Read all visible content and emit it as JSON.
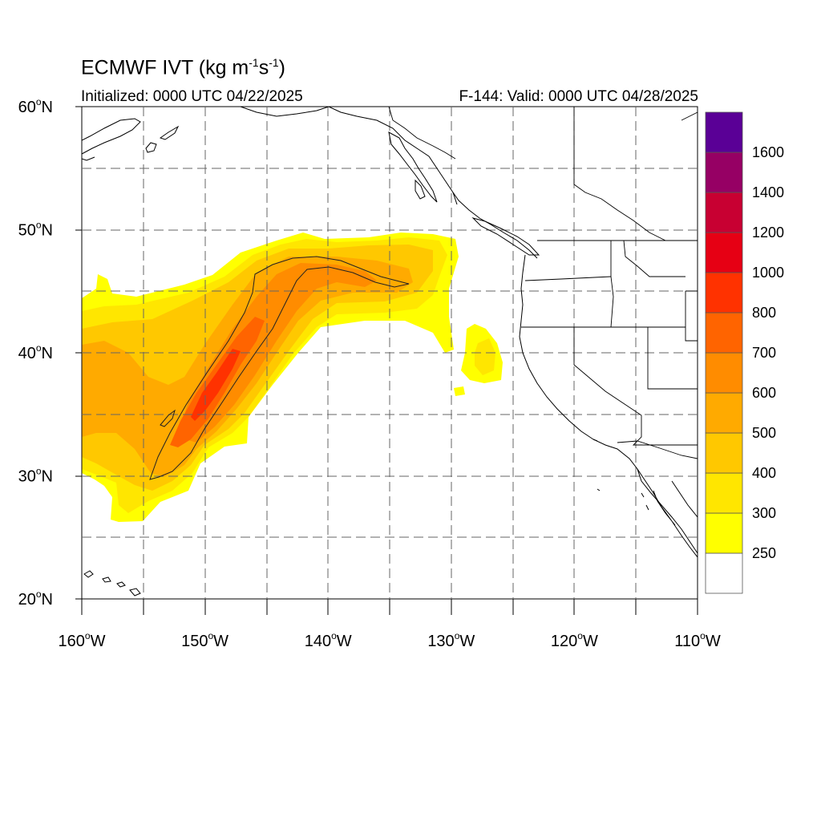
{
  "title_main": "ECMWF IVT (kg m",
  "title_sup1": "-1",
  "title_mid": "s",
  "title_sup2": "-1",
  "title_end": ")",
  "init_text": "Initialized: 0000 UTC 04/22/2025",
  "valid_text": "F-144: Valid: 0000 UTC 04/28/2025",
  "lat_labels": [
    {
      "deg": "60",
      "lat": 60
    },
    {
      "deg": "50",
      "lat": 50
    },
    {
      "deg": "40",
      "lat": 40
    },
    {
      "deg": "30",
      "lat": 30
    },
    {
      "deg": "20",
      "lat": 20
    }
  ],
  "lat_suffix": "N",
  "lon_labels": [
    {
      "deg": "160",
      "lon": -160
    },
    {
      "deg": "150",
      "lon": -150
    },
    {
      "deg": "140",
      "lon": -140
    },
    {
      "deg": "130",
      "lon": -130
    },
    {
      "deg": "120",
      "lon": -120
    },
    {
      "deg": "110",
      "lon": -110
    }
  ],
  "lon_suffix": "W",
  "colorbar": {
    "levels": [
      {
        "label": "",
        "color": "#ffffff"
      },
      {
        "label": "250",
        "color": "#ffff00"
      },
      {
        "label": "300",
        "color": "#ffe600"
      },
      {
        "label": "400",
        "color": "#ffc800"
      },
      {
        "label": "500",
        "color": "#ffaa00"
      },
      {
        "label": "600",
        "color": "#ff8c00"
      },
      {
        "label": "700",
        "color": "#ff6400"
      },
      {
        "label": "800",
        "color": "#ff3200"
      },
      {
        "label": "1000",
        "color": "#e60014"
      },
      {
        "label": "1200",
        "color": "#c80032"
      },
      {
        "label": "1400",
        "color": "#960064"
      },
      {
        "label": "1600",
        "color": "#5a0096"
      }
    ]
  }
}
